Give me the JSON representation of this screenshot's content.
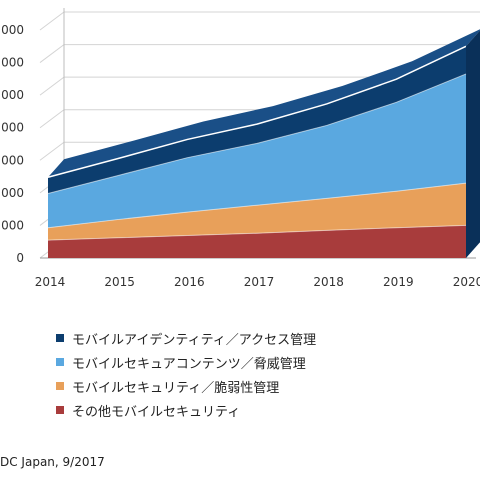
{
  "chart_data": {
    "type": "area",
    "stacked": true,
    "style": "3d",
    "categories": [
      "2014",
      "2015",
      "2016",
      "2017",
      "2018",
      "2019",
      "2020"
    ],
    "y_tick_labels": [
      "0",
      "000",
      "000",
      "000",
      "000",
      "000",
      "000",
      "000"
    ],
    "ylim": [
      0,
      7000
    ],
    "grid": "horizontal",
    "legend_position": "bottom",
    "series": [
      {
        "name": "その他モバイルセキュリティ",
        "color": "#a83c3c",
        "values": [
          550,
          620,
          690,
          760,
          850,
          930,
          1000
        ]
      },
      {
        "name": "モバイルセキュリティ／脆弱性管理",
        "color": "#e8a05a",
        "values": [
          380,
          560,
          720,
          860,
          980,
          1120,
          1300
        ]
      },
      {
        "name": "モバイルセキュアコンテンツ／脅威管理",
        "color": "#5aa8e0",
        "values": [
          1050,
          1350,
          1670,
          1900,
          2240,
          2730,
          3350
        ]
      },
      {
        "name": "モバイルアイデンティティ／アクセス管理",
        "color": "#0c3d6e",
        "values": [
          500,
          520,
          560,
          590,
          660,
          710,
          850
        ]
      }
    ]
  },
  "source": "DC Japan, 9/2017"
}
